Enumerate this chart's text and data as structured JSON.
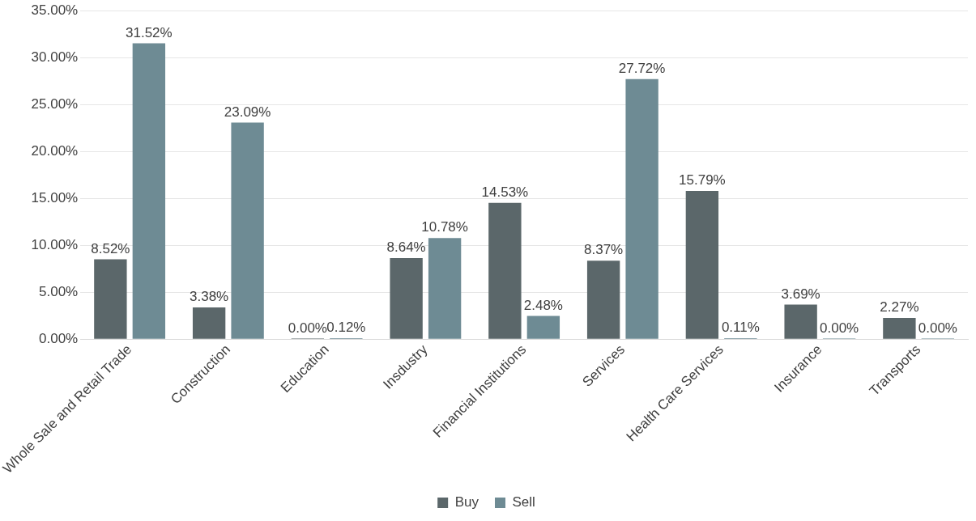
{
  "chart_data": {
    "type": "bar",
    "categories": [
      "Whole Sale and Retail Trade",
      "Construction",
      "Education",
      "Insdustry",
      "Financial Institutions",
      "Services",
      "Health Care Services",
      "Insurance",
      "Transports"
    ],
    "series": [
      {
        "name": "Buy",
        "color": "#5b676a",
        "values": [
          8.52,
          3.38,
          0.0,
          8.64,
          14.53,
          8.37,
          15.79,
          3.69,
          2.27
        ],
        "value_labels": [
          "8.52%",
          "3.38%",
          "0.00%",
          "8.64%",
          "14.53%",
          "8.37%",
          "15.79%",
          "3.69%",
          "2.27%"
        ]
      },
      {
        "name": "Sell",
        "color": "#6e8b94",
        "values": [
          31.52,
          23.09,
          0.12,
          10.78,
          2.48,
          27.72,
          0.11,
          0.0,
          0.0
        ],
        "value_labels": [
          "31.52%",
          "23.09%",
          "0.12%",
          "10.78%",
          "2.48%",
          "27.72%",
          "0.11%",
          "0.00%",
          "0.00%"
        ]
      }
    ],
    "ylim": [
      0,
      35
    ],
    "yticks": [
      {
        "value": 0,
        "label": "0.00%"
      },
      {
        "value": 5,
        "label": "5.00%"
      },
      {
        "value": 10,
        "label": "10.00%"
      },
      {
        "value": 15,
        "label": "15.00%"
      },
      {
        "value": 20,
        "label": "20.00%"
      },
      {
        "value": 25,
        "label": "25.00%"
      },
      {
        "value": 30,
        "label": "30.00%"
      },
      {
        "value": 35,
        "label": "35.00%"
      }
    ],
    "grid": "y",
    "legend": "bottom"
  }
}
